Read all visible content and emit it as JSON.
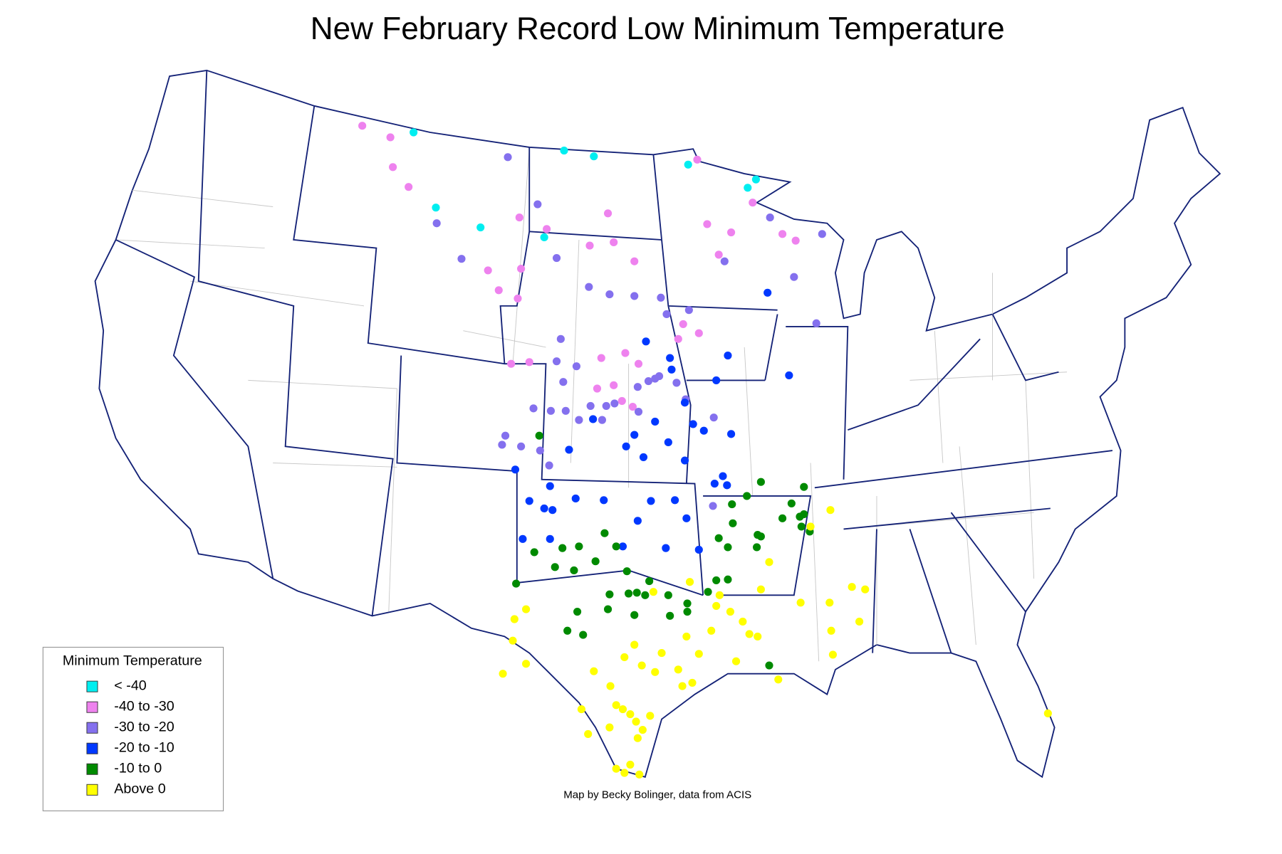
{
  "title": "New February Record Low Minimum Temperature",
  "legend": {
    "title": "Minimum Temperature",
    "items": [
      {
        "label": "< -40",
        "color": "#00eef0"
      },
      {
        "label": "-40 to -30",
        "color": "#ee82ee"
      },
      {
        "label": "-30 to -20",
        "color": "#8470ee"
      },
      {
        "label": "-20 to -10",
        "color": "#0038ff"
      },
      {
        "label": "-10 to 0",
        "color": "#008a00"
      },
      {
        "label": "Above 0",
        "color": "#ffff00"
      }
    ]
  },
  "credit": "Map by Becky Bolinger, data from ACIS"
}
